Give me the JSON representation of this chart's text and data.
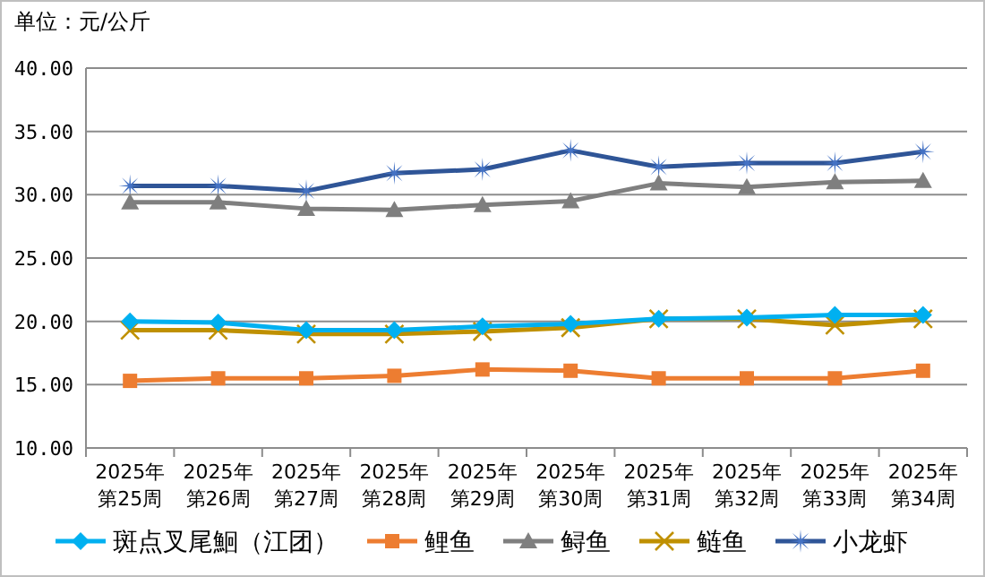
{
  "chart_data": {
    "type": "line",
    "title": "单位：元/公斤",
    "categories": [
      "2025年第25周",
      "2025年第26周",
      "2025年第27周",
      "2025年第28周",
      "2025年第29周",
      "2025年第30周",
      "2025年第31周",
      "2025年第32周",
      "2025年第33周",
      "2025年第34周"
    ],
    "series": [
      {
        "name": "斑点叉尾鮰（江团）",
        "color": "#00b0f0",
        "marker": "diamond",
        "values": [
          20.0,
          19.9,
          19.3,
          19.3,
          19.6,
          19.8,
          20.2,
          20.3,
          20.5,
          20.5
        ]
      },
      {
        "name": "鲤鱼",
        "color": "#ed7d31",
        "marker": "square",
        "values": [
          15.3,
          15.5,
          15.5,
          15.7,
          16.2,
          16.1,
          15.5,
          15.5,
          15.5,
          16.1
        ]
      },
      {
        "name": "鲟鱼",
        "color": "#7f7f7f",
        "marker": "triangle",
        "values": [
          29.4,
          29.4,
          28.9,
          28.8,
          29.2,
          29.5,
          30.9,
          30.6,
          31.0,
          31.1
        ]
      },
      {
        "name": "鲢鱼",
        "color": "#bf9000",
        "marker": "cross",
        "values": [
          19.3,
          19.3,
          19.0,
          19.0,
          19.2,
          19.5,
          20.2,
          20.2,
          19.7,
          20.2
        ]
      },
      {
        "name": "小龙虾",
        "color": "#2f5597",
        "marker": "star",
        "values": [
          30.7,
          30.7,
          30.3,
          31.7,
          32.0,
          33.5,
          32.2,
          32.5,
          32.5,
          33.4
        ]
      }
    ],
    "ylim": [
      10,
      40
    ],
    "yticks": [
      {
        "value": 10,
        "label": "10.00"
      },
      {
        "value": 15,
        "label": "15.00"
      },
      {
        "value": 20,
        "label": "20.00"
      },
      {
        "value": 25,
        "label": "25.00"
      },
      {
        "value": 30,
        "label": "30.00"
      },
      {
        "value": 35,
        "label": "35.00"
      },
      {
        "value": 40,
        "label": "40.00"
      }
    ],
    "grid": "y",
    "legend": "bottom"
  }
}
